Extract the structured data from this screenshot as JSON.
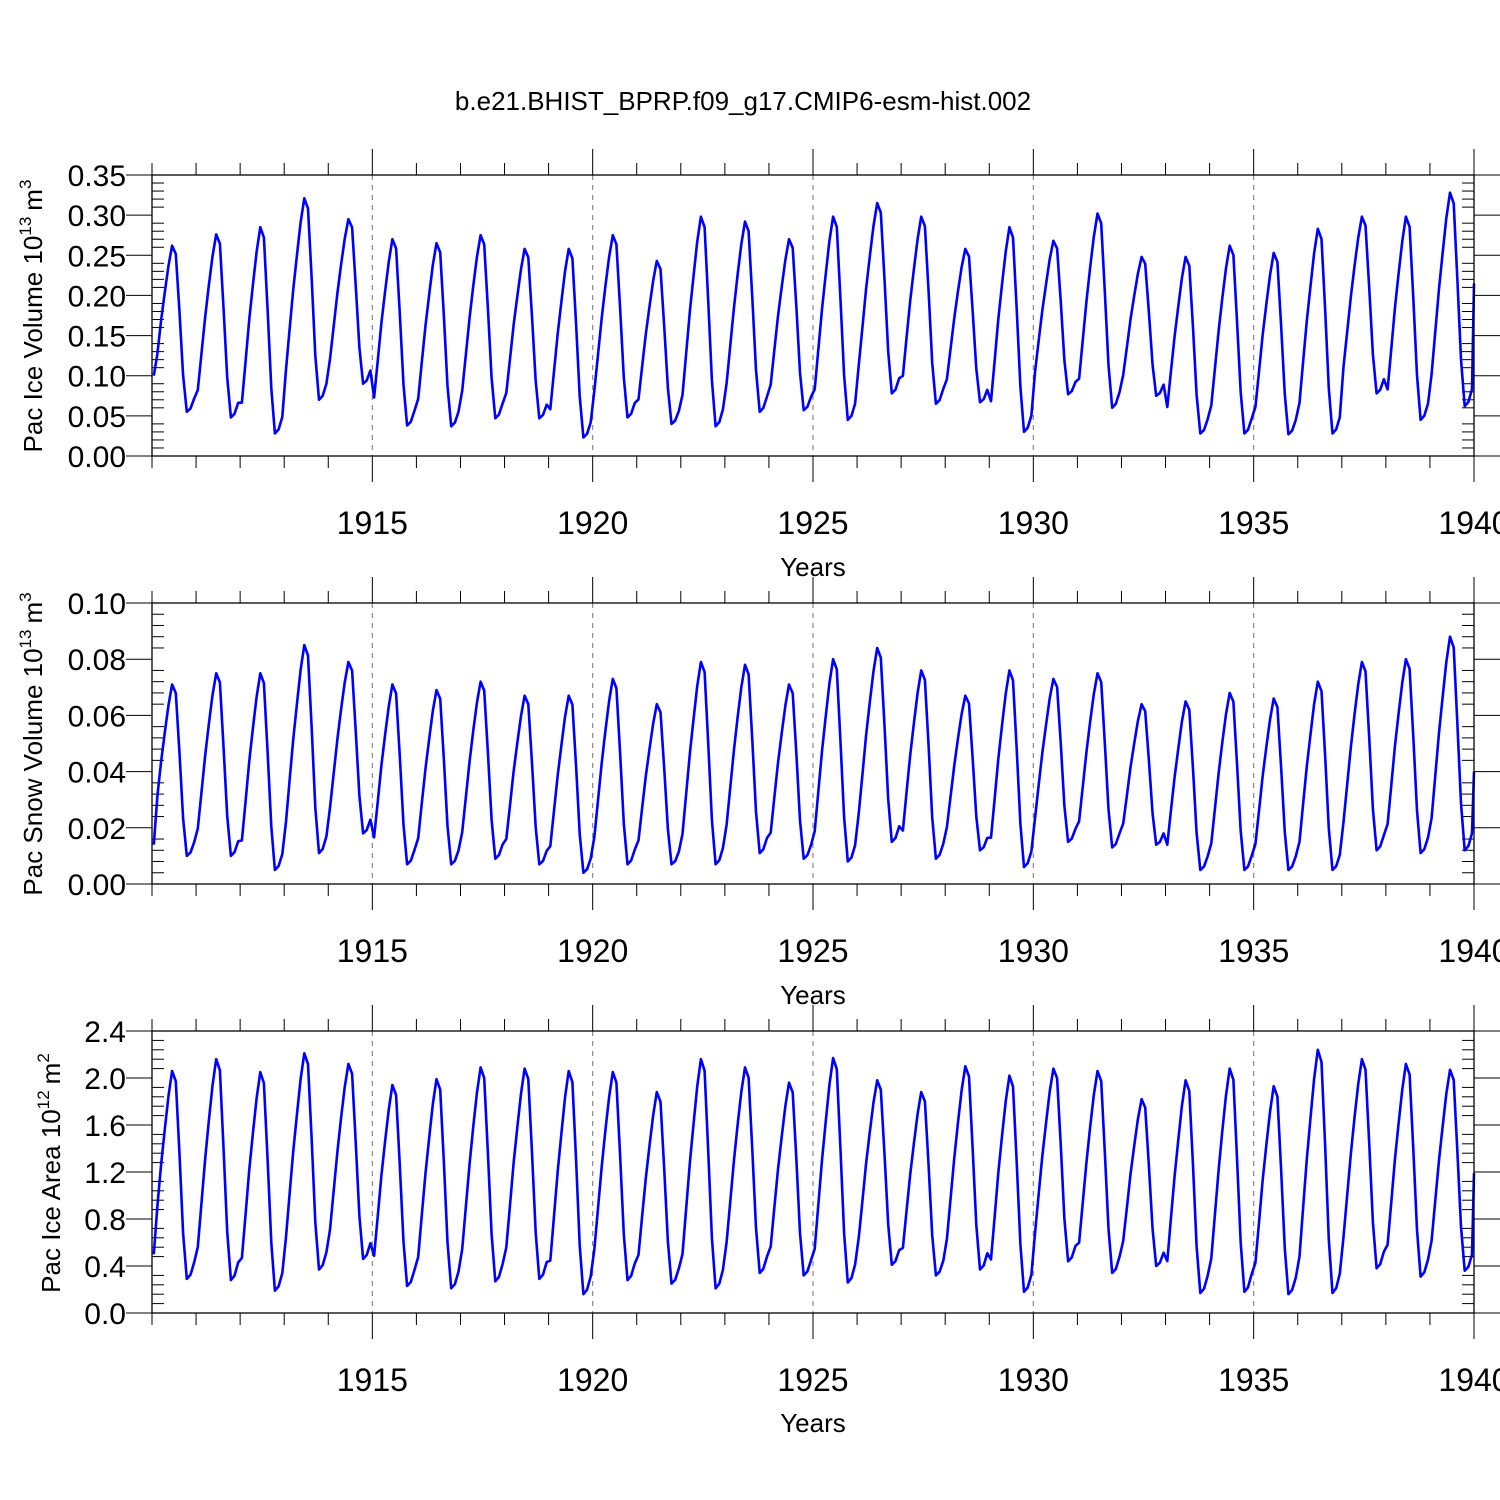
{
  "title": "b.e21.BHIST_BPRP.f09_g17.CMIP6-esm-hist.002",
  "chart_data": [
    {
      "type": "line",
      "xlabel": "Years",
      "ylabel": "Pac Ice Volume 10",
      "ylabel_exp": "13",
      "ylabel_unit": "m",
      "ylabel_unit_exp": "3",
      "xlim": [
        1910.0,
        1940.0
      ],
      "ylim": [
        0.0,
        0.35
      ],
      "x_ticks": [
        1915,
        1920,
        1925,
        1930,
        1935,
        1940
      ],
      "y_ticks": [
        "0.00",
        "0.05",
        "0.10",
        "0.15",
        "0.20",
        "0.25",
        "0.30",
        "0.35"
      ],
      "color": "#0000ff",
      "grid": "dashed vertical lines at major x ticks",
      "legend": "none",
      "series": [
        {
          "x_start": 1910.04,
          "x_step": 0.08333,
          "annual_max": [
            0.262,
            0.276,
            0.285,
            0.321,
            0.295,
            0.27,
            0.265,
            0.275,
            0.258,
            0.258,
            0.275,
            0.243,
            0.298,
            0.292,
            0.27,
            0.298,
            0.315,
            0.298,
            0.258,
            0.285,
            0.268,
            0.302,
            0.248,
            0.248,
            0.262,
            0.253,
            0.283,
            0.298,
            0.298,
            0.328
          ],
          "annual_min": [
            0.055,
            0.048,
            0.028,
            0.07,
            0.09,
            0.038,
            0.037,
            0.047,
            0.047,
            0.023,
            0.048,
            0.04,
            0.037,
            0.055,
            0.057,
            0.045,
            0.078,
            0.065,
            0.067,
            0.03,
            0.077,
            0.06,
            0.075,
            0.028,
            0.028,
            0.027,
            0.028,
            0.078,
            0.045,
            0.062
          ],
          "start_value": 0.1,
          "end_value": 0.215
        }
      ]
    },
    {
      "type": "line",
      "xlabel": "Years",
      "ylabel": "Pac Snow Volume 10",
      "ylabel_exp": "13",
      "ylabel_unit": "m",
      "ylabel_unit_exp": "3",
      "xlim": [
        1910.0,
        1940.0
      ],
      "ylim": [
        0.0,
        0.1
      ],
      "x_ticks": [
        1915,
        1920,
        1925,
        1930,
        1935,
        1940
      ],
      "y_ticks": [
        "0.00",
        "0.02",
        "0.04",
        "0.06",
        "0.08",
        "0.10"
      ],
      "color": "#0000ff",
      "grid": "dashed vertical lines at major x ticks",
      "legend": "none",
      "series": [
        {
          "x_start": 1910.04,
          "x_step": 0.08333,
          "annual_max": [
            0.071,
            0.075,
            0.075,
            0.085,
            0.079,
            0.071,
            0.069,
            0.072,
            0.067,
            0.067,
            0.073,
            0.064,
            0.079,
            0.078,
            0.071,
            0.08,
            0.084,
            0.076,
            0.067,
            0.076,
            0.073,
            0.075,
            0.064,
            0.065,
            0.068,
            0.066,
            0.072,
            0.079,
            0.08,
            0.088
          ],
          "annual_min": [
            0.01,
            0.01,
            0.005,
            0.011,
            0.018,
            0.007,
            0.007,
            0.009,
            0.007,
            0.004,
            0.007,
            0.007,
            0.007,
            0.011,
            0.009,
            0.008,
            0.015,
            0.009,
            0.012,
            0.006,
            0.015,
            0.013,
            0.014,
            0.005,
            0.005,
            0.005,
            0.005,
            0.012,
            0.011,
            0.012
          ],
          "start_value": 0.014,
          "end_value": 0.04
        }
      ]
    },
    {
      "type": "line",
      "xlabel": "Years",
      "ylabel": "Pac Ice Area 10",
      "ylabel_exp": "12",
      "ylabel_unit": "m",
      "ylabel_unit_exp": "2",
      "xlim": [
        1910.0,
        1940.0
      ],
      "ylim": [
        0.0,
        2.4
      ],
      "x_ticks": [
        1915,
        1920,
        1925,
        1930,
        1935,
        1940
      ],
      "y_ticks": [
        "0.0",
        "0.4",
        "0.8",
        "1.2",
        "1.6",
        "2.0",
        "2.4"
      ],
      "color": "#0000ff",
      "grid": "dashed vertical lines at major x ticks",
      "legend": "none",
      "series": [
        {
          "x_start": 1910.04,
          "x_step": 0.08333,
          "annual_max": [
            2.06,
            2.16,
            2.05,
            2.21,
            2.12,
            1.94,
            1.99,
            2.09,
            2.08,
            2.06,
            2.05,
            1.88,
            2.16,
            2.09,
            1.96,
            2.17,
            1.98,
            1.88,
            2.1,
            2.02,
            2.08,
            2.06,
            1.82,
            1.98,
            2.08,
            1.93,
            2.24,
            2.16,
            2.12,
            2.07
          ],
          "annual_min": [
            0.29,
            0.28,
            0.19,
            0.37,
            0.46,
            0.23,
            0.21,
            0.27,
            0.29,
            0.16,
            0.28,
            0.25,
            0.21,
            0.34,
            0.32,
            0.26,
            0.41,
            0.32,
            0.37,
            0.18,
            0.44,
            0.34,
            0.4,
            0.17,
            0.18,
            0.16,
            0.17,
            0.38,
            0.31,
            0.36
          ],
          "start_value": 0.5,
          "end_value": 1.19
        }
      ]
    }
  ]
}
